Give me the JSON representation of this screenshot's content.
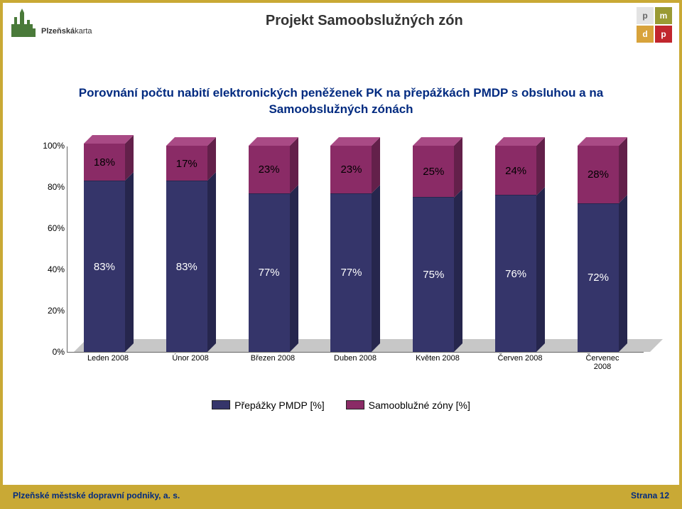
{
  "header": {
    "title": "Projekt Samoobslužných zón",
    "logo_left_text_bold": "Plzeňská",
    "logo_left_text_light": "karta",
    "logo_right": {
      "p": "p",
      "m": "m",
      "d": "d",
      "p2": "p"
    }
  },
  "subtitle": "Porovnání počtu nabití elektronických peněženek PK na přepážkách PMDP s obsluhou a na Samoobslužných zónách",
  "chart": {
    "type": "stacked-bar-3d",
    "ylim": [
      0,
      100
    ],
    "ytick_step": 20,
    "yticks": [
      "0%",
      "20%",
      "40%",
      "60%",
      "80%",
      "100%"
    ],
    "categories": [
      "Leden 2008",
      "Únor 2008",
      "Březen 2008",
      "Duben 2008",
      "Květen 2008",
      "Červen 2008",
      "Červenec 2008"
    ],
    "series": [
      {
        "name": "Přepážky PMDP [%]",
        "color_front": "#35356a",
        "color_side": "#26264d",
        "color_top": "#4a4a88",
        "values": [
          83,
          83,
          77,
          77,
          75,
          76,
          72
        ],
        "labels": [
          "83%",
          "83%",
          "77%",
          "77%",
          "75%",
          "76%",
          "72%"
        ]
      },
      {
        "name": "Samooblužné zóny [%]",
        "color_front": "#8a2b66",
        "color_side": "#63204a",
        "color_top": "#a94a85",
        "values": [
          18,
          17,
          23,
          23,
          25,
          24,
          28
        ],
        "labels": [
          "18%",
          "17%",
          "23%",
          "23%",
          "25%",
          "24%",
          "28%"
        ]
      }
    ],
    "floor_color": "#c7c7c7",
    "axis_color": "#666666",
    "label_fontsize": 15,
    "xlabel_fontsize": 11,
    "ytick_fontsize": 12
  },
  "legend": {
    "items": [
      {
        "label": "Přepážky PMDP [%]",
        "color": "#35356a"
      },
      {
        "label": "Samooblužné zóny [%]",
        "color": "#8a2b66"
      }
    ]
  },
  "footer": {
    "left": "Plzeňské městské dopravní podniky, a. s.",
    "right": "Strana 12"
  },
  "colors": {
    "frame": "#c9a935",
    "title": "#333333",
    "subtitle": "#012a80",
    "footer_text": "#012a80"
  }
}
